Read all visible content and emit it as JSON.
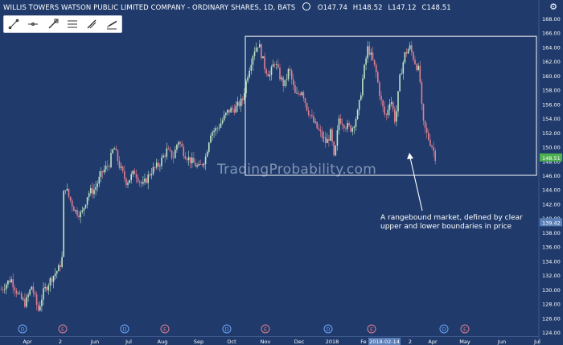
{
  "header": {
    "title": "WILLIS TOWERS WATSON PUBLIC LIMITED COMPANY - ORDINARY SHARES, 1D, BATS",
    "open": "O147.74",
    "high": "H148.52",
    "low": "L147.12",
    "close": "C148.51"
  },
  "toolbar": {
    "tools": [
      "trend-line-icon",
      "horizontal-ray-icon",
      "fib-tool-icon",
      "channel-icon",
      "pitchfork-icon",
      "lines-icon"
    ]
  },
  "watermark": "TradingProbability.com",
  "annotation": "A rangebound market, defined by clear upper and lower boundaries in price",
  "colors": {
    "background": "#1f3a6b",
    "up_candle": "#bfe4c4",
    "down_candle": "#e07f92",
    "range_box": "#d9dee8",
    "price_badge": "#4caf50",
    "last_value_badge": "#5a7fb8"
  },
  "chart_data": {
    "type": "candlestick",
    "ylim": [
      124,
      168
    ],
    "y_ticks": [
      "124.00",
      "126.00",
      "128.00",
      "130.00",
      "132.00",
      "134.00",
      "136.00",
      "138.00",
      "140.00",
      "142.00",
      "144.00",
      "146.00",
      "148.00",
      "150.00",
      "152.00",
      "154.00",
      "156.00",
      "158.00",
      "160.00",
      "162.00",
      "164.00",
      "166.00",
      "168.00"
    ],
    "x_labels": [
      "Apr",
      "2",
      "Jun",
      "Jul",
      "Aug",
      "Sep",
      "Oct",
      "Nov",
      "Dec",
      "2018",
      "Fe",
      "2018-02-14",
      "2",
      "Apr",
      "May",
      "Jun",
      "Jul"
    ],
    "events": [
      {
        "label": "D",
        "type": "dividend"
      },
      {
        "label": "E",
        "type": "earnings"
      },
      {
        "label": "D",
        "type": "dividend"
      },
      {
        "label": "E",
        "type": "earnings"
      },
      {
        "label": "D",
        "type": "dividend"
      },
      {
        "label": "E",
        "type": "earnings"
      },
      {
        "label": "D",
        "type": "dividend"
      },
      {
        "label": "E",
        "type": "earnings"
      },
      {
        "label": "D",
        "type": "dividend"
      },
      {
        "label": "E",
        "type": "earnings"
      }
    ],
    "price_badge": "148.51",
    "value_badge": "139.42",
    "range_box": {
      "upper": 165.5,
      "lower": 146.0,
      "start": "Oct",
      "end": "Apr"
    },
    "path": [
      [
        0,
        130.0
      ],
      [
        12,
        131.5
      ],
      [
        22,
        129.0
      ],
      [
        30,
        128.0
      ],
      [
        38,
        130.5
      ],
      [
        46,
        127.0
      ],
      [
        52,
        129.5
      ],
      [
        62,
        131.5
      ],
      [
        72,
        133.0
      ],
      [
        76,
        134.5
      ],
      [
        78,
        145.0
      ],
      [
        84,
        143.0
      ],
      [
        92,
        141.0
      ],
      [
        100,
        140.5
      ],
      [
        108,
        143.5
      ],
      [
        116,
        144.0
      ],
      [
        126,
        146.5
      ],
      [
        134,
        147.5
      ],
      [
        140,
        150.0
      ],
      [
        148,
        147.0
      ],
      [
        156,
        145.0
      ],
      [
        166,
        146.5
      ],
      [
        176,
        144.5
      ],
      [
        186,
        146.5
      ],
      [
        196,
        147.5
      ],
      [
        206,
        149.5
      ],
      [
        214,
        148.5
      ],
      [
        220,
        151.0
      ],
      [
        228,
        149.0
      ],
      [
        236,
        148.0
      ],
      [
        246,
        147.0
      ],
      [
        254,
        148.5
      ],
      [
        260,
        152.0
      ],
      [
        268,
        152.5
      ],
      [
        274,
        153.5
      ],
      [
        282,
        155.0
      ],
      [
        292,
        155.5
      ],
      [
        300,
        156.5
      ],
      [
        306,
        160.0
      ],
      [
        314,
        163.5
      ],
      [
        320,
        164.5
      ],
      [
        328,
        161.0
      ],
      [
        334,
        160.0
      ],
      [
        340,
        162.0
      ],
      [
        346,
        160.0
      ],
      [
        352,
        158.5
      ],
      [
        358,
        161.0
      ],
      [
        366,
        157.0
      ],
      [
        374,
        158.0
      ],
      [
        380,
        155.5
      ],
      [
        388,
        153.5
      ],
      [
        396,
        152.0
      ],
      [
        404,
        150.5
      ],
      [
        410,
        152.0
      ],
      [
        414,
        148.0
      ],
      [
        420,
        154.0
      ],
      [
        428,
        153.0
      ],
      [
        436,
        152.5
      ],
      [
        444,
        155.0
      ],
      [
        450,
        160.0
      ],
      [
        456,
        164.0
      ],
      [
        462,
        162.0
      ],
      [
        466,
        160.5
      ],
      [
        472,
        156.5
      ],
      [
        478,
        154.0
      ],
      [
        484,
        157.0
      ],
      [
        490,
        153.5
      ],
      [
        496,
        160.0
      ],
      [
        502,
        163.0
      ],
      [
        508,
        164.0
      ],
      [
        514,
        162.0
      ],
      [
        520,
        160.5
      ],
      [
        524,
        153.5
      ],
      [
        530,
        151.5
      ],
      [
        536,
        150.0
      ],
      [
        540,
        148.5
      ]
    ]
  }
}
